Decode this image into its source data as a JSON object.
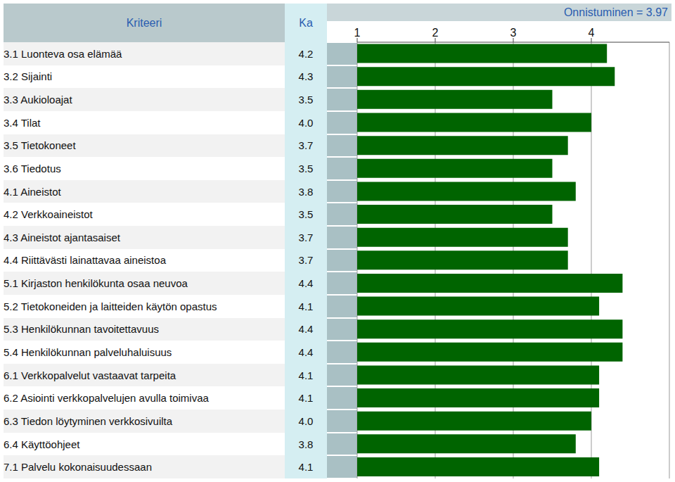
{
  "chart_data": {
    "type": "bar",
    "orientation": "horizontal",
    "title": "Onnistuminen = 3.97",
    "ylabel": "Kriteeri",
    "xlabel": "Ka",
    "categories": [
      "3.1 Luonteva osa elämää",
      "3.2 Sijainti",
      "3.3 Aukioloajat",
      "3.4 Tilat",
      "3.5 Tietokoneet",
      "3.6 Tiedotus",
      "4.1 Aineistot",
      "4.2 Verkkoaineistot",
      "4.3 Aineistot ajantasaiset",
      "4.4 Riittävästi lainattavaa aineistoa",
      "5.1 Kirjaston henkilökunta osaa neuvoa",
      "5.2 Tietokoneiden ja laitteiden käytön opastus",
      "5.3 Henkilökunnan tavoitettavuus",
      "5.4 Henkilökunnan palveluhaluisuus",
      "6.1 Verkkopalvelut vastaavat tarpeita",
      "6.2 Asiointi verkkopalvelujen avulla toimivaa",
      "6.3 Tiedon löytyminen verkkosivuilta",
      "6.4 Käyttöohjeet",
      "7.1 Palvelu kokonaisuudessaan"
    ],
    "values": [
      4.2,
      4.3,
      3.5,
      4.0,
      3.7,
      3.5,
      3.8,
      3.5,
      3.7,
      3.7,
      4.4,
      4.1,
      4.4,
      4.4,
      4.1,
      4.1,
      4.0,
      3.8,
      4.1
    ],
    "value_labels": [
      "4.2",
      "4.3",
      "3.5",
      "4.0",
      "3.7",
      "3.5",
      "3.8",
      "3.5",
      "3.7",
      "3.7",
      "4.4",
      "4.1",
      "4.4",
      "4.4",
      "4.1",
      "4.1",
      "4.0",
      "3.8",
      "4.1"
    ],
    "color": "#006400",
    "xlim": [
      1,
      5
    ],
    "xticks": [
      1,
      2,
      3,
      4
    ],
    "grid": true
  }
}
